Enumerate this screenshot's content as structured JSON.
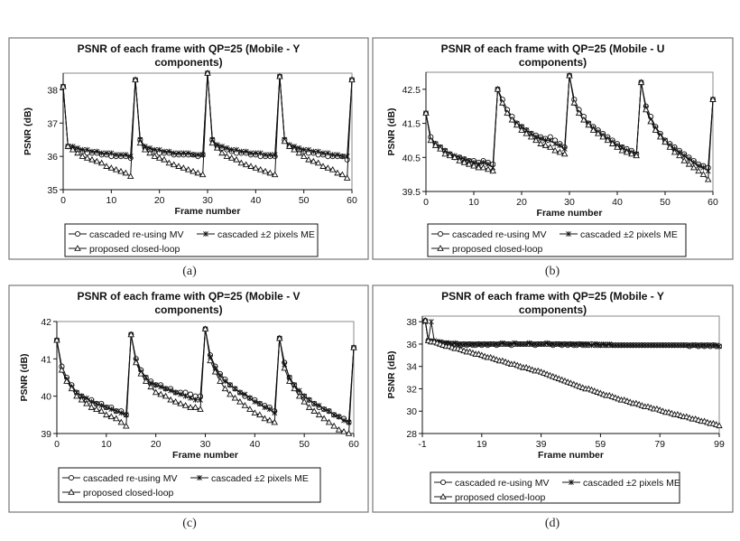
{
  "legend": [
    "cascaded re-using MV",
    "cascaded ±2 pixels ME",
    "proposed closed-loop"
  ],
  "chart_data": [
    {
      "type": "line",
      "caption": "(a)",
      "title": "PSNR of each frame with QP=25 (Mobile - Y",
      "title2": "components)",
      "xlabel": "Frame number",
      "ylabel": "PSNR (dB)",
      "xlim": [
        0,
        60
      ],
      "ylim": [
        35,
        38.5
      ],
      "xticks": [
        0,
        10,
        20,
        30,
        40,
        50,
        60
      ],
      "yticks": [
        35,
        36,
        37,
        38
      ],
      "grid": false,
      "legend_position": "bottom",
      "x_start": 0,
      "series": [
        {
          "name": "cascaded re-using MV",
          "marker": "circle",
          "values": [
            38.1,
            36.3,
            36.25,
            36.2,
            36.15,
            36.1,
            36.1,
            36.1,
            36.05,
            36.05,
            36.0,
            36.0,
            36.0,
            36.0,
            35.95,
            38.3,
            36.5,
            36.25,
            36.2,
            36.15,
            36.1,
            36.1,
            36.1,
            36.05,
            36.05,
            36.05,
            36.05,
            36.05,
            36.0,
            36.05,
            38.5,
            36.5,
            36.3,
            36.25,
            36.2,
            36.15,
            36.1,
            36.1,
            36.1,
            36.05,
            36.05,
            36.0,
            36.0,
            36.0,
            36.0,
            38.4,
            36.5,
            36.3,
            36.25,
            36.2,
            36.15,
            36.1,
            36.1,
            36.05,
            36.05,
            36.0,
            36.0,
            36.0,
            36.0,
            35.9,
            38.3
          ]
        },
        {
          "name": "cascaded ±2 pixels ME",
          "marker": "x",
          "values": [
            38.1,
            36.3,
            36.3,
            36.25,
            36.2,
            36.2,
            36.15,
            36.15,
            36.1,
            36.1,
            36.1,
            36.05,
            36.05,
            36.05,
            36.0,
            38.3,
            36.5,
            36.3,
            36.25,
            36.2,
            36.2,
            36.15,
            36.15,
            36.1,
            36.1,
            36.1,
            36.1,
            36.05,
            36.05,
            36.05,
            38.5,
            36.5,
            36.35,
            36.3,
            36.25,
            36.2,
            36.2,
            36.15,
            36.15,
            36.1,
            36.1,
            36.1,
            36.05,
            36.05,
            36.05,
            38.4,
            36.5,
            36.35,
            36.3,
            36.25,
            36.2,
            36.2,
            36.15,
            36.15,
            36.1,
            36.1,
            36.05,
            36.05,
            36.0,
            36.0,
            38.3
          ]
        },
        {
          "name": "proposed closed-loop",
          "marker": "triangle",
          "values": [
            38.1,
            36.3,
            36.2,
            36.1,
            36.0,
            35.95,
            35.9,
            35.85,
            35.8,
            35.7,
            35.65,
            35.6,
            35.55,
            35.5,
            35.4,
            38.3,
            36.4,
            36.2,
            36.1,
            36.0,
            35.95,
            35.9,
            35.8,
            35.75,
            35.7,
            35.65,
            35.6,
            35.55,
            35.5,
            35.45,
            38.5,
            36.4,
            36.25,
            36.1,
            36.0,
            35.95,
            35.9,
            35.8,
            35.75,
            35.7,
            35.65,
            35.6,
            35.55,
            35.5,
            35.45,
            38.4,
            36.45,
            36.3,
            36.2,
            36.1,
            36.0,
            35.9,
            35.85,
            35.8,
            35.7,
            35.65,
            35.6,
            35.5,
            35.45,
            35.35,
            38.3
          ]
        }
      ]
    },
    {
      "type": "line",
      "caption": "(b)",
      "title": "PSNR of each frame with QP=25 (Mobile - U",
      "title2": "components)",
      "xlabel": "Frame number",
      "ylabel": "PSNR (dB)",
      "xlim": [
        0,
        60
      ],
      "ylim": [
        39.5,
        43
      ],
      "xticks": [
        0,
        10,
        20,
        30,
        40,
        50,
        60
      ],
      "yticks": [
        39.5,
        40.5,
        41.5,
        42.5
      ],
      "grid": false,
      "legend_position": "bottom",
      "x_start": 0,
      "series": [
        {
          "name": "cascaded re-using MV",
          "marker": "circle",
          "values": [
            41.8,
            41.1,
            40.9,
            40.8,
            40.7,
            40.6,
            40.5,
            40.5,
            40.45,
            40.4,
            40.4,
            40.35,
            40.4,
            40.35,
            40.3,
            42.5,
            42.2,
            41.9,
            41.7,
            41.5,
            41.4,
            41.3,
            41.2,
            41.15,
            41.1,
            41.05,
            41.1,
            41.0,
            40.9,
            40.8,
            42.9,
            42.2,
            41.9,
            41.7,
            41.5,
            41.4,
            41.3,
            41.2,
            41.1,
            41.0,
            40.9,
            40.8,
            40.75,
            40.7,
            40.6,
            42.7,
            42.0,
            41.7,
            41.4,
            41.2,
            41.0,
            40.9,
            40.8,
            40.7,
            40.6,
            40.5,
            40.4,
            40.3,
            40.25,
            40.2,
            42.2
          ]
        },
        {
          "name": "cascaded ±2 pixels ME",
          "marker": "x",
          "values": [
            41.8,
            41.0,
            40.9,
            40.8,
            40.7,
            40.6,
            40.55,
            40.5,
            40.45,
            40.4,
            40.35,
            40.3,
            40.35,
            40.3,
            40.2,
            42.5,
            42.1,
            41.8,
            41.6,
            41.5,
            41.4,
            41.3,
            41.2,
            41.1,
            41.05,
            41.0,
            41.0,
            40.9,
            40.85,
            40.75,
            42.9,
            42.1,
            41.8,
            41.6,
            41.5,
            41.35,
            41.25,
            41.15,
            41.05,
            40.95,
            40.85,
            40.8,
            40.7,
            40.65,
            40.6,
            42.7,
            41.95,
            41.6,
            41.35,
            41.15,
            41.0,
            40.85,
            40.75,
            40.65,
            40.55,
            40.45,
            40.35,
            40.25,
            40.2,
            40.1,
            42.2
          ]
        },
        {
          "name": "proposed closed-loop",
          "marker": "triangle",
          "values": [
            41.8,
            41.0,
            40.85,
            40.75,
            40.6,
            40.55,
            40.5,
            40.4,
            40.35,
            40.3,
            40.25,
            40.2,
            40.2,
            40.15,
            40.1,
            42.5,
            42.1,
            41.8,
            41.6,
            41.45,
            41.3,
            41.2,
            41.1,
            41.0,
            40.9,
            40.85,
            40.8,
            40.7,
            40.65,
            40.6,
            42.9,
            42.1,
            41.8,
            41.6,
            41.45,
            41.3,
            41.2,
            41.1,
            41.0,
            40.9,
            40.8,
            40.7,
            40.65,
            40.6,
            40.55,
            42.7,
            41.9,
            41.55,
            41.3,
            41.1,
            40.95,
            40.8,
            40.65,
            40.55,
            40.4,
            40.3,
            40.2,
            40.1,
            40.0,
            39.85,
            42.2
          ]
        }
      ]
    },
    {
      "type": "line",
      "caption": "(c)",
      "title": "PSNR of each frame with QP=25 (Mobile - V",
      "title2": "components)",
      "xlabel": "Frame number",
      "ylabel": "PSNR (dB)",
      "xlim": [
        0,
        60
      ],
      "ylim": [
        39,
        42
      ],
      "xticks": [
        0,
        10,
        20,
        30,
        40,
        50,
        60
      ],
      "yticks": [
        39,
        40,
        41,
        42
      ],
      "grid": false,
      "legend_position": "bottom",
      "x_start": 0,
      "series": [
        {
          "name": "cascaded re-using MV",
          "marker": "circle",
          "values": [
            41.5,
            40.8,
            40.5,
            40.3,
            40.1,
            40.0,
            39.9,
            39.9,
            39.8,
            39.8,
            39.7,
            39.7,
            39.6,
            39.6,
            39.5,
            41.65,
            41.0,
            40.7,
            40.5,
            40.4,
            40.3,
            40.3,
            40.2,
            40.2,
            40.1,
            40.1,
            40.1,
            40.05,
            40.0,
            40.0,
            41.8,
            41.1,
            40.8,
            40.6,
            40.45,
            40.3,
            40.2,
            40.1,
            40.0,
            39.95,
            39.9,
            39.8,
            39.75,
            39.7,
            39.6,
            41.55,
            40.9,
            40.5,
            40.3,
            40.1,
            40.0,
            39.9,
            39.8,
            39.7,
            39.65,
            39.6,
            39.5,
            39.45,
            39.4,
            39.3,
            41.3
          ]
        },
        {
          "name": "cascaded ±2 pixels ME",
          "marker": "x",
          "values": [
            41.5,
            40.7,
            40.45,
            40.25,
            40.1,
            40.0,
            39.95,
            39.85,
            39.8,
            39.75,
            39.7,
            39.65,
            39.6,
            39.55,
            39.5,
            41.65,
            40.95,
            40.65,
            40.5,
            40.35,
            40.3,
            40.25,
            40.2,
            40.15,
            40.1,
            40.05,
            40.0,
            39.95,
            39.9,
            39.9,
            41.8,
            41.05,
            40.75,
            40.55,
            40.4,
            40.3,
            40.2,
            40.1,
            40.05,
            39.95,
            39.85,
            39.8,
            39.7,
            39.65,
            39.55,
            41.55,
            40.85,
            40.5,
            40.3,
            40.15,
            40.0,
            39.9,
            39.8,
            39.75,
            39.65,
            39.6,
            39.5,
            39.45,
            39.35,
            39.3,
            41.3
          ]
        },
        {
          "name": "proposed closed-loop",
          "marker": "triangle",
          "values": [
            41.5,
            40.7,
            40.4,
            40.2,
            40.0,
            39.9,
            39.8,
            39.7,
            39.65,
            39.6,
            39.5,
            39.45,
            39.4,
            39.3,
            39.2,
            41.65,
            40.9,
            40.6,
            40.4,
            40.25,
            40.1,
            40.05,
            40.0,
            39.9,
            39.85,
            39.8,
            39.75,
            39.7,
            39.7,
            39.65,
            41.8,
            40.95,
            40.65,
            40.4,
            40.2,
            40.05,
            39.95,
            39.85,
            39.75,
            39.65,
            39.55,
            39.5,
            39.4,
            39.35,
            39.3,
            41.55,
            40.75,
            40.4,
            40.2,
            40.0,
            39.85,
            39.7,
            39.6,
            39.5,
            39.4,
            39.3,
            39.2,
            39.1,
            39.05,
            39.0,
            41.3
          ]
        }
      ]
    },
    {
      "type": "line",
      "caption": "(d)",
      "title": "PSNR of each frame with QP=25 (Mobile - Y",
      "title2": "components)",
      "xlabel": "Frame number",
      "ylabel": "PSNR (dB)",
      "xlim": [
        -1,
        99
      ],
      "ylim": [
        28,
        38.5
      ],
      "xticks": [
        -1,
        19,
        39,
        59,
        79,
        99
      ],
      "yticks": [
        28,
        30,
        32,
        34,
        36,
        38
      ],
      "grid": false,
      "legend_position": "bottom",
      "x_start": 0,
      "series": [
        {
          "name": "cascaded re-using MV",
          "marker": "circle",
          "values": [
            38.1,
            36.3,
            36.2,
            36.2,
            36.1,
            36.1,
            36.1,
            36.0,
            36.0,
            36.0,
            36.0,
            36.0,
            35.9,
            36.0,
            35.9,
            36.0,
            35.9,
            35.9,
            36.0,
            35.9,
            36.0,
            35.9,
            36.0,
            36.0,
            35.9,
            36.0,
            36.0,
            36.0,
            36.0,
            35.9,
            36.0,
            36.0,
            36.0,
            36.0,
            36.0,
            36.0,
            36.0,
            35.9,
            36.0,
            36.0,
            36.0,
            36.0,
            36.0,
            35.9,
            36.0,
            36.0,
            35.9,
            36.0,
            35.9,
            36.0,
            35.9,
            35.9,
            36.0,
            35.9,
            35.9,
            35.9,
            36.0,
            35.9,
            35.9,
            35.9,
            35.9,
            35.9,
            35.9,
            35.9,
            35.9,
            35.9,
            35.9,
            35.9,
            35.9,
            35.9,
            35.9,
            35.9,
            35.9,
            35.9,
            35.9,
            35.9,
            35.9,
            35.9,
            35.9,
            35.9,
            35.9,
            35.9,
            35.9,
            35.9,
            35.9,
            35.9,
            35.9,
            35.9,
            35.9,
            35.8,
            35.9,
            35.9,
            35.8,
            35.9,
            35.8,
            35.9,
            35.8,
            35.9,
            35.8,
            35.8
          ]
        },
        {
          "name": "cascaded ±2 pixels ME",
          "marker": "x",
          "values": [
            38.0,
            36.3,
            38.0,
            36.3,
            36.2,
            36.2,
            36.1,
            36.1,
            36.1,
            36.0,
            36.1,
            36.0,
            36.0,
            36.0,
            36.0,
            36.0,
            36.0,
            36.0,
            36.0,
            36.0,
            36.0,
            36.0,
            36.0,
            36.0,
            36.0,
            36.0,
            36.1,
            36.0,
            36.0,
            36.0,
            36.1,
            36.0,
            36.0,
            36.0,
            36.0,
            36.1,
            36.0,
            36.0,
            36.0,
            36.0,
            36.0,
            36.1,
            36.0,
            36.0,
            36.0,
            36.0,
            36.0,
            36.0,
            36.0,
            36.0,
            36.0,
            36.0,
            36.0,
            36.0,
            36.0,
            36.0,
            35.9,
            36.0,
            36.0,
            35.9,
            36.0,
            35.9,
            36.0,
            35.9,
            35.9,
            35.9,
            35.9,
            35.9,
            35.9,
            35.9,
            35.9,
            35.9,
            35.9,
            35.9,
            35.9,
            35.9,
            35.9,
            35.9,
            35.9,
            35.9,
            35.9,
            35.9,
            35.9,
            35.9,
            35.9,
            35.9,
            35.9,
            35.9,
            35.9,
            35.9,
            35.9,
            35.9,
            35.9,
            35.9,
            35.9,
            35.9,
            35.9,
            35.9,
            35.9,
            35.8
          ]
        },
        {
          "name": "proposed closed-loop",
          "marker": "triangle",
          "values": [
            38.1,
            36.3,
            36.2,
            36.2,
            36.1,
            36.0,
            35.9,
            35.8,
            35.8,
            35.7,
            35.6,
            35.6,
            35.5,
            35.4,
            35.3,
            35.3,
            35.2,
            35.1,
            35.1,
            35.0,
            34.9,
            34.8,
            34.8,
            34.7,
            34.6,
            34.5,
            34.5,
            34.4,
            34.3,
            34.2,
            34.2,
            34.1,
            34.0,
            33.9,
            33.9,
            33.8,
            33.7,
            33.6,
            33.6,
            33.5,
            33.4,
            33.3,
            33.2,
            33.1,
            33.0,
            32.9,
            32.8,
            32.7,
            32.6,
            32.5,
            32.4,
            32.3,
            32.2,
            32.1,
            32.0,
            32.0,
            31.9,
            31.8,
            31.7,
            31.6,
            31.5,
            31.4,
            31.4,
            31.3,
            31.2,
            31.1,
            31.0,
            31.0,
            30.9,
            30.8,
            30.7,
            30.7,
            30.6,
            30.5,
            30.4,
            30.4,
            30.3,
            30.2,
            30.2,
            30.1,
            30.0,
            29.9,
            29.9,
            29.8,
            29.7,
            29.7,
            29.6,
            29.5,
            29.5,
            29.4,
            29.3,
            29.3,
            29.2,
            29.1,
            29.1,
            29.0,
            28.9,
            28.9,
            28.8,
            28.7
          ]
        }
      ]
    }
  ]
}
